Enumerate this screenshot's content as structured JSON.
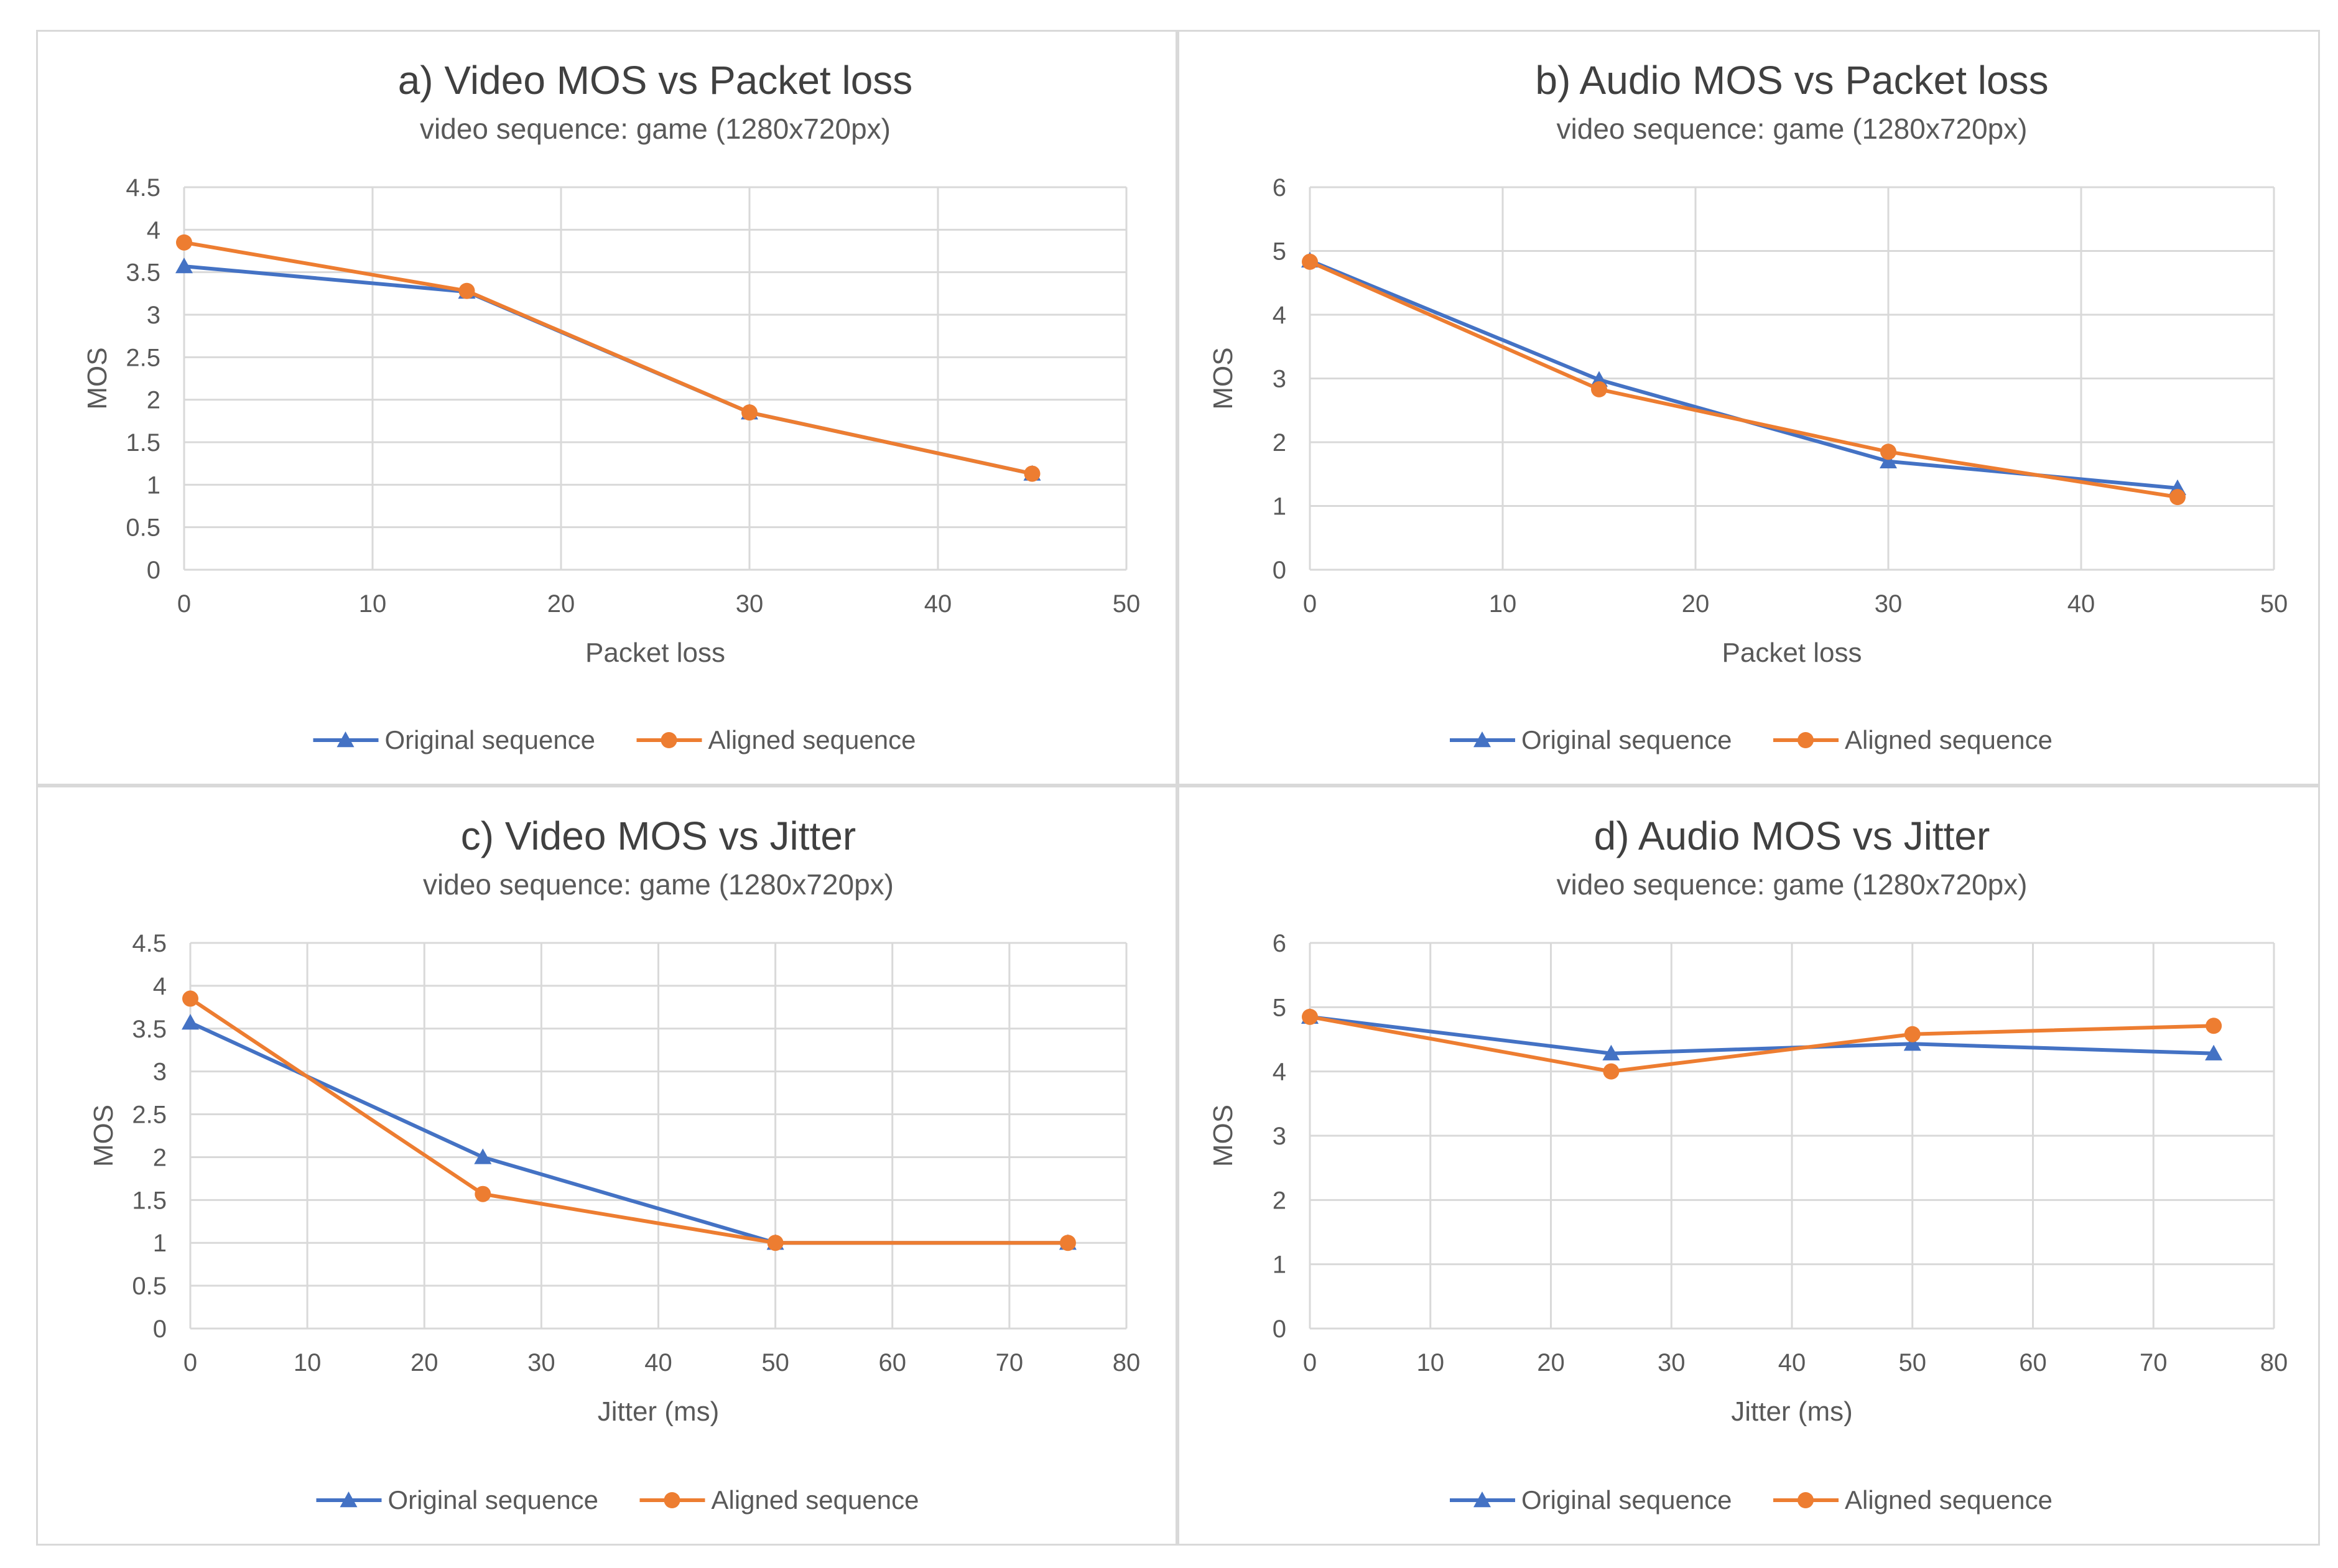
{
  "colors": {
    "original": "#4472C4",
    "aligned": "#ED7D31",
    "grid": "#d9d9d9",
    "text": "#595959"
  },
  "chart_data": [
    {
      "id": "a",
      "type": "line",
      "title": "a) Video MOS vs Packet loss",
      "subtitle": "video sequence:  game (1280x720px)",
      "xlabel": "Packet loss",
      "ylabel": "MOS",
      "xlim": [
        0,
        50
      ],
      "ylim": [
        0,
        4.5
      ],
      "xticks": [
        0,
        10,
        20,
        30,
        40,
        50
      ],
      "yticks": [
        "0",
        "0.5",
        "1",
        "1.5",
        "2",
        "2.5",
        "3",
        "3.5",
        "4",
        "4.5"
      ],
      "x": [
        0,
        15,
        30,
        45
      ],
      "series": [
        {
          "name": "Original sequence",
          "marker": "triangle",
          "values": [
            3.57,
            3.27,
            1.85,
            1.13
          ]
        },
        {
          "name": "Aligned sequence",
          "marker": "circle",
          "values": [
            3.85,
            3.28,
            1.85,
            1.13
          ]
        }
      ],
      "legend": "bottom",
      "grid": true
    },
    {
      "id": "b",
      "type": "line",
      "title": "b) Audio MOS vs Packet loss",
      "subtitle": "video sequence:  game (1280x720px)",
      "xlabel": "Packet loss",
      "ylabel": "MOS",
      "xlim": [
        0,
        50
      ],
      "ylim": [
        0,
        6
      ],
      "xticks": [
        0,
        10,
        20,
        30,
        40,
        50
      ],
      "yticks": [
        "0",
        "1",
        "2",
        "3",
        "4",
        "5",
        "6"
      ],
      "x": [
        0,
        15,
        30,
        45
      ],
      "series": [
        {
          "name": "Original sequence",
          "marker": "triangle",
          "values": [
            4.85,
            2.98,
            1.7,
            1.28
          ]
        },
        {
          "name": "Aligned sequence",
          "marker": "circle",
          "values": [
            4.83,
            2.83,
            1.85,
            1.14
          ]
        }
      ],
      "legend": "bottom",
      "grid": true
    },
    {
      "id": "c",
      "type": "line",
      "title": "c) Video MOS vs Jitter",
      "subtitle": "video sequence:  game (1280x720px)",
      "xlabel": "Jitter (ms)",
      "ylabel": "MOS",
      "xlim": [
        0,
        80
      ],
      "ylim": [
        0,
        4.5
      ],
      "xticks": [
        0,
        10,
        20,
        30,
        40,
        50,
        60,
        70,
        80
      ],
      "yticks": [
        "0",
        "0.5",
        "1",
        "1.5",
        "2",
        "2.5",
        "3",
        "3.5",
        "4",
        "4.5"
      ],
      "x": [
        0,
        25,
        50,
        75
      ],
      "series": [
        {
          "name": "Original sequence",
          "marker": "triangle",
          "values": [
            3.57,
            2.0,
            1.0,
            1.0
          ]
        },
        {
          "name": "Aligned sequence",
          "marker": "circle",
          "values": [
            3.85,
            1.57,
            1.0,
            1.0
          ]
        }
      ],
      "legend": "bottom",
      "grid": true
    },
    {
      "id": "d",
      "type": "line",
      "title": "d) Audio MOS vs Jitter",
      "subtitle": "video sequence:  game (1280x720px)",
      "xlabel": "Jitter (ms)",
      "ylabel": "MOS",
      "xlim": [
        0,
        80
      ],
      "ylim": [
        0,
        6
      ],
      "xticks": [
        0,
        10,
        20,
        30,
        40,
        50,
        60,
        70,
        80
      ],
      "yticks": [
        "0",
        "1",
        "2",
        "3",
        "4",
        "5",
        "6"
      ],
      "x": [
        0,
        25,
        50,
        75
      ],
      "series": [
        {
          "name": "Original sequence",
          "marker": "triangle",
          "values": [
            4.85,
            4.28,
            4.43,
            4.28
          ]
        },
        {
          "name": "Aligned sequence",
          "marker": "circle",
          "values": [
            4.85,
            4.0,
            4.58,
            4.71
          ]
        }
      ],
      "legend": "bottom",
      "grid": true
    }
  ]
}
